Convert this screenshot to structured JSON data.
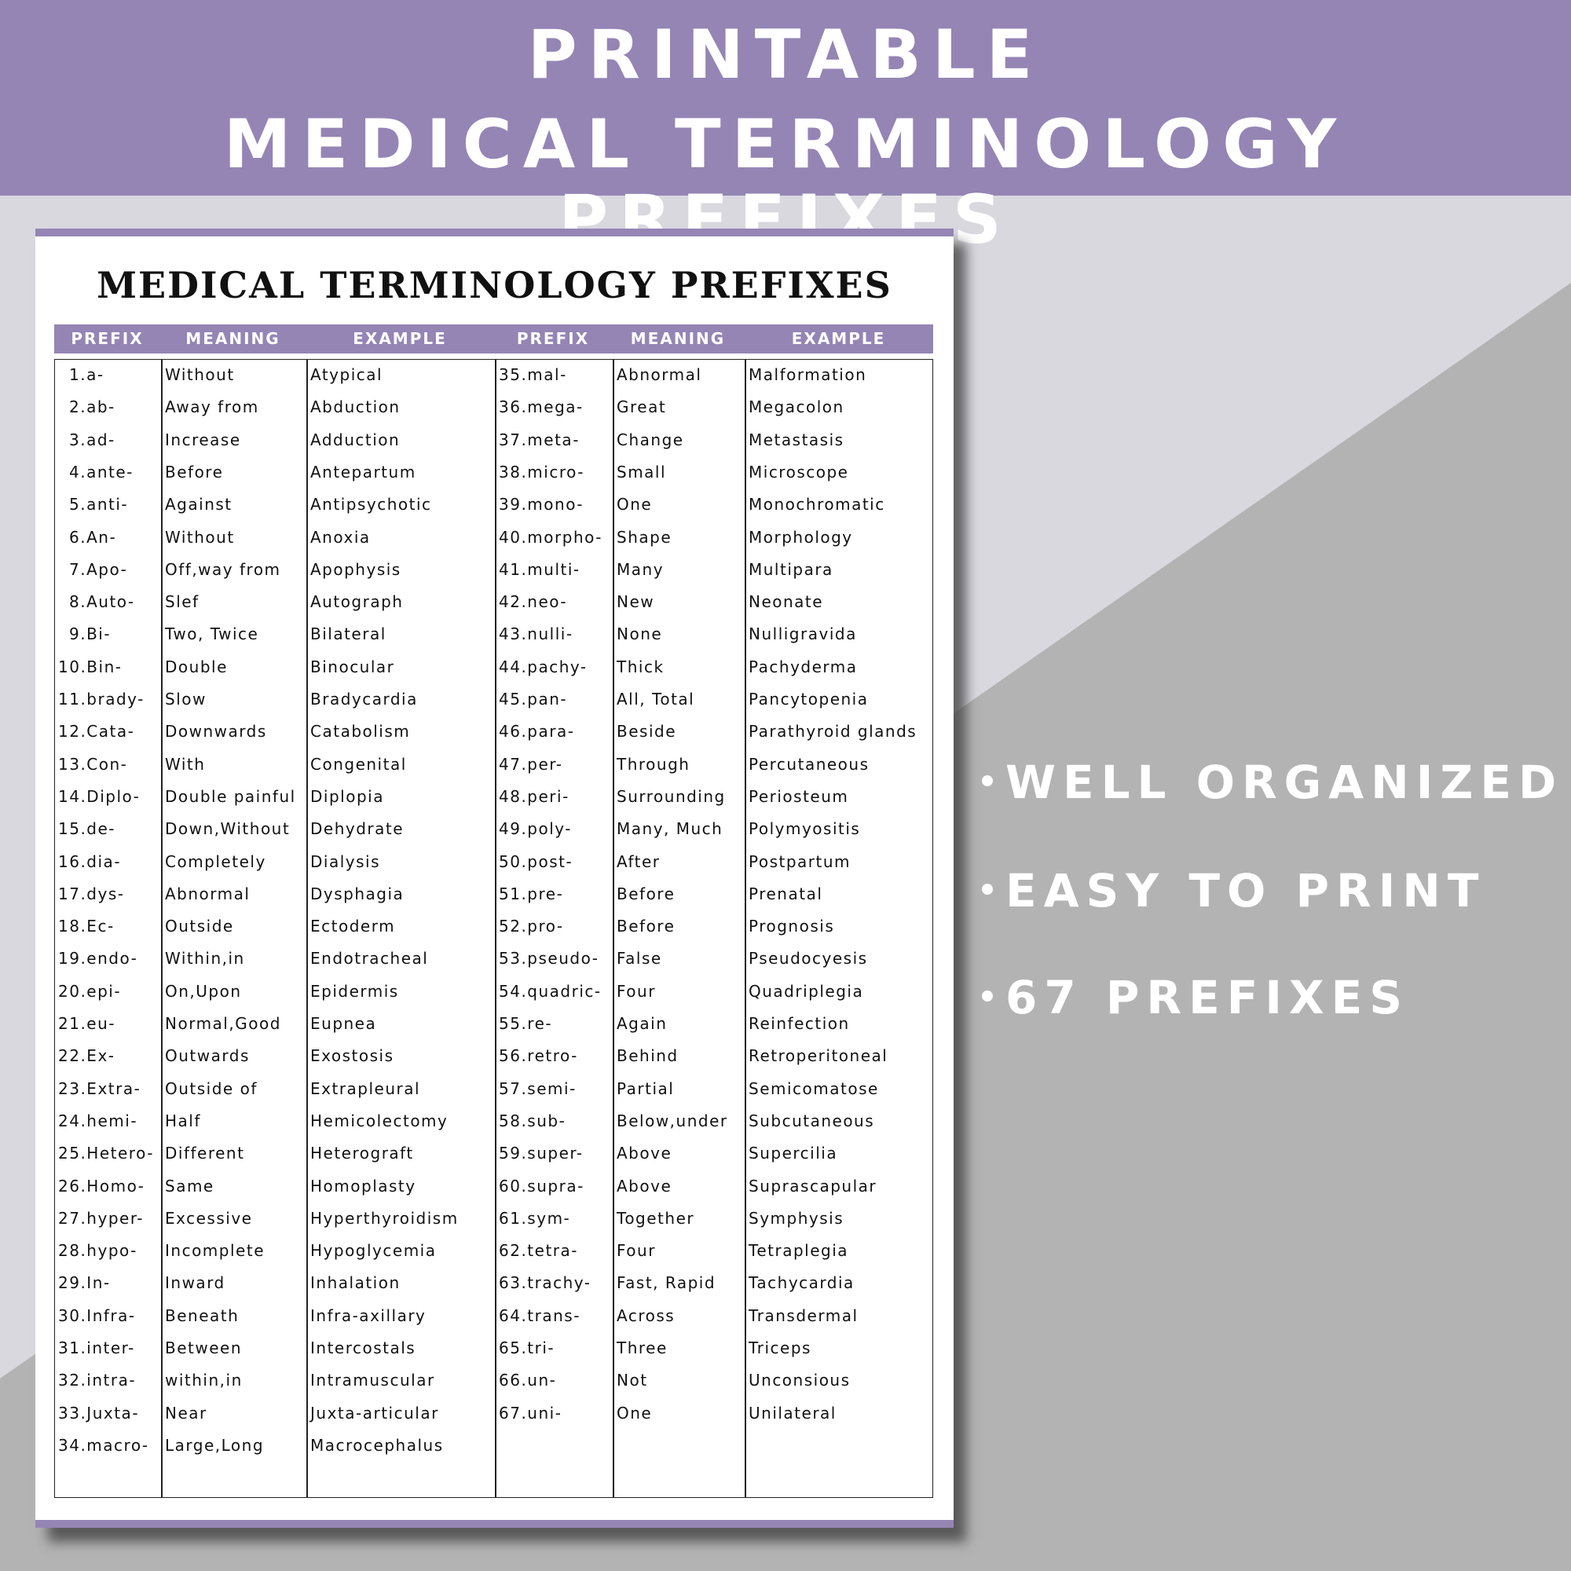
{
  "banner": {
    "line1": "PRINTABLE",
    "line2": "MEDICAL TERMINOLOGY PREFIXES"
  },
  "colors": {
    "accent": "#9485b5",
    "background": "#d9d8df",
    "gray": "#b3b3b3"
  },
  "document": {
    "title": "MEDICAL TERMINOLOGY PREFIXES",
    "headers": [
      "PREFIX",
      "MEANING",
      "EXAMPLE",
      "PREFIX",
      "MEANING",
      "EXAMPLE"
    ],
    "left_rows": [
      [
        "1.a-",
        "Without",
        "Atypical"
      ],
      [
        "2.ab-",
        "Away from",
        "Abduction"
      ],
      [
        "3.ad-",
        "Increase",
        "Adduction"
      ],
      [
        "4.ante-",
        "Before",
        "Antepartum"
      ],
      [
        "5.anti-",
        "Against",
        "Antipsychotic"
      ],
      [
        "6.An-",
        "Without",
        "Anoxia"
      ],
      [
        "7.Apo-",
        "Off,way from",
        "Apophysis"
      ],
      [
        "8.Auto-",
        "Slef",
        "Autograph"
      ],
      [
        "9.Bi-",
        "Two, Twice",
        "Bilateral"
      ],
      [
        "10.Bin-",
        "Double",
        "Binocular"
      ],
      [
        "11.brady-",
        "Slow",
        "Bradycardia"
      ],
      [
        "12.Cata-",
        "Downwards",
        "Catabolism"
      ],
      [
        "13.Con-",
        "With",
        "Congenital"
      ],
      [
        "14.Diplo-",
        "Double painful",
        "Diplopia"
      ],
      [
        "15.de-",
        "Down,Without",
        "Dehydrate"
      ],
      [
        "16.dia-",
        "Completely",
        "Dialysis"
      ],
      [
        "17.dys-",
        "Abnormal",
        "Dysphagia"
      ],
      [
        "18.Ec-",
        "Outside",
        "Ectoderm"
      ],
      [
        "19.endo-",
        "Within,in",
        "Endotracheal"
      ],
      [
        "20.epi-",
        "On,Upon",
        "Epidermis"
      ],
      [
        "21.eu-",
        "Normal,Good",
        "Eupnea"
      ],
      [
        "22.Ex-",
        "Outwards",
        "Exostosis"
      ],
      [
        "23.Extra-",
        "Outside of",
        "Extrapleural"
      ],
      [
        "24.hemi-",
        "Half",
        "Hemicolectomy"
      ],
      [
        "25.Hetero-",
        "Different",
        "Heterograft"
      ],
      [
        "26.Homo-",
        "Same",
        "Homoplasty"
      ],
      [
        "27.hyper-",
        "Excessive",
        "Hyperthyroidism"
      ],
      [
        "28.hypo-",
        "Incomplete",
        "Hypoglycemia"
      ],
      [
        "29.In-",
        "Inward",
        "Inhalation"
      ],
      [
        "30.Infra-",
        "Beneath",
        "Infra-axillary"
      ],
      [
        "31.inter-",
        "Between",
        "Intercostals"
      ],
      [
        "32.intra-",
        "within,in",
        "Intramuscular"
      ],
      [
        "33.Juxta-",
        "Near",
        "Juxta-articular"
      ],
      [
        "34.macro-",
        "Large,Long",
        "Macrocephalus"
      ]
    ],
    "right_rows": [
      [
        "35.mal-",
        "Abnormal",
        "Malformation"
      ],
      [
        "36.mega-",
        "Great",
        "Megacolon"
      ],
      [
        "37.meta-",
        "Change",
        "Metastasis"
      ],
      [
        "38.micro-",
        "Small",
        "Microscope"
      ],
      [
        "39.mono-",
        "One",
        "Monochromatic"
      ],
      [
        "40.morpho-",
        "Shape",
        "Morphology"
      ],
      [
        "41.multi-",
        "Many",
        "Multipara"
      ],
      [
        "42.neo-",
        "New",
        "Neonate"
      ],
      [
        "43.nulli-",
        "None",
        "Nulligravida"
      ],
      [
        "44.pachy-",
        "Thick",
        "Pachyderma"
      ],
      [
        "45.pan-",
        "All, Total",
        "Pancytopenia"
      ],
      [
        "46.para-",
        "Beside",
        "Parathyroid glands"
      ],
      [
        "47.per-",
        "Through",
        "Percutaneous"
      ],
      [
        "48.peri-",
        "Surrounding",
        "Periosteum"
      ],
      [
        "49.poly-",
        "Many, Much",
        "Polymyositis"
      ],
      [
        "50.post-",
        "After",
        "Postpartum"
      ],
      [
        "51.pre-",
        "Before",
        "Prenatal"
      ],
      [
        "52.pro-",
        "Before",
        "Prognosis"
      ],
      [
        "53.pseudo-",
        "False",
        "Pseudocyesis"
      ],
      [
        "54.quadric-",
        "Four",
        "Quadriplegia"
      ],
      [
        "55.re-",
        "Again",
        "Reinfection"
      ],
      [
        "56.retro-",
        "Behind",
        "Retroperitoneal"
      ],
      [
        "57.semi-",
        "Partial",
        "Semicomatose"
      ],
      [
        "58.sub-",
        "Below,under",
        "Subcutaneous"
      ],
      [
        "59.super-",
        "Above",
        "Supercilia"
      ],
      [
        "60.supra-",
        "Above",
        "Suprascapular"
      ],
      [
        "61.sym-",
        "Together",
        "Symphysis"
      ],
      [
        "62.tetra-",
        "Four",
        "Tetraplegia"
      ],
      [
        "63.trachy-",
        "Fast, Rapid",
        "Tachycardia"
      ],
      [
        "64.trans-",
        "Across",
        "Transdermal"
      ],
      [
        "65.tri-",
        "Three",
        "Triceps"
      ],
      [
        "66.un-",
        "Not",
        "Unconsious"
      ],
      [
        "67.uni-",
        "One",
        "Unilateral"
      ]
    ]
  },
  "features": [
    "WELL ORGANIZED",
    "EASY TO PRINT",
    "67 PREFIXES"
  ]
}
